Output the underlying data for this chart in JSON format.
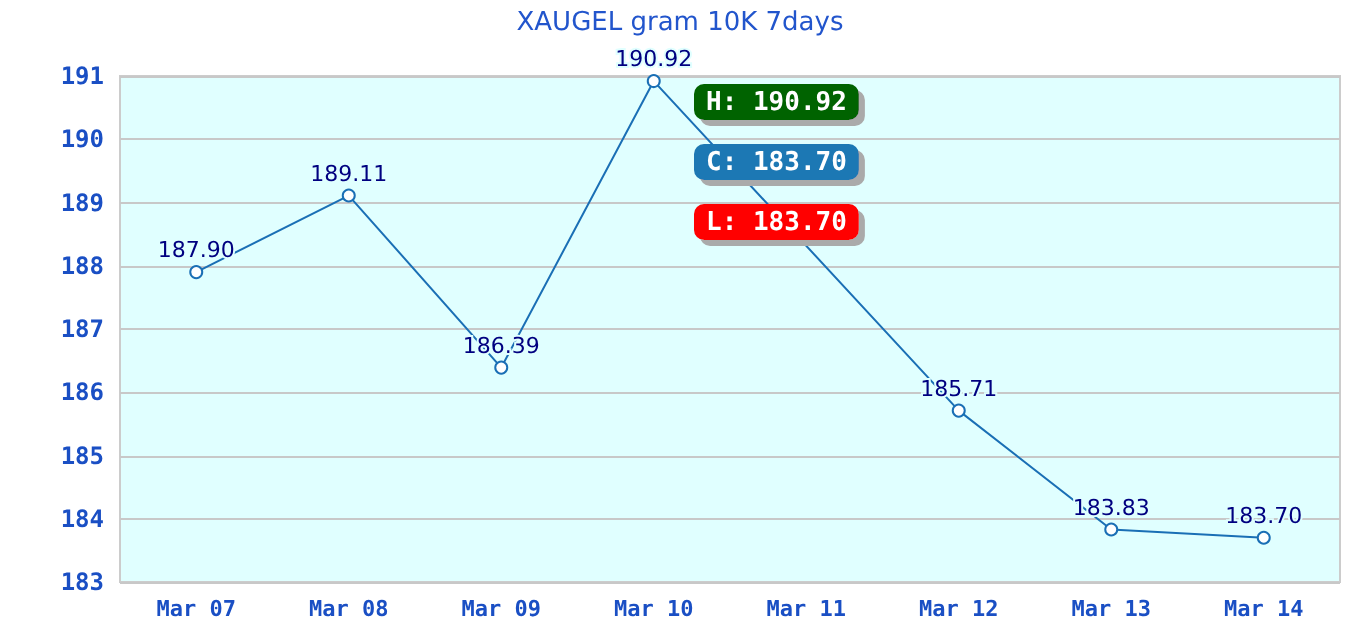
{
  "chart_data": {
    "type": "line",
    "title": "XAUGEL gram 10K 7days",
    "categories": [
      "Mar 07",
      "Mar 08",
      "Mar 09",
      "Mar 10",
      "Mar 11",
      "Mar 12",
      "Mar 13",
      "Mar 14"
    ],
    "series": [
      {
        "color": "#1a6fb5",
        "values": [
          187.9,
          189.11,
          186.39,
          190.92,
          null,
          185.71,
          183.83,
          183.7
        ],
        "value_labels": [
          "187.90",
          "189.11",
          "186.39",
          "190.92",
          null,
          "185.71",
          "183.83",
          "183.70"
        ]
      }
    ],
    "ylim": [
      183,
      191
    ],
    "yticks": [
      183,
      184,
      185,
      186,
      187,
      188,
      189,
      190,
      191
    ],
    "annotations": [
      "H: 190.92",
      "C: 183.70",
      "L: 183.70"
    ],
    "grid": "y",
    "marker": "circle",
    "line_style": "solid"
  }
}
